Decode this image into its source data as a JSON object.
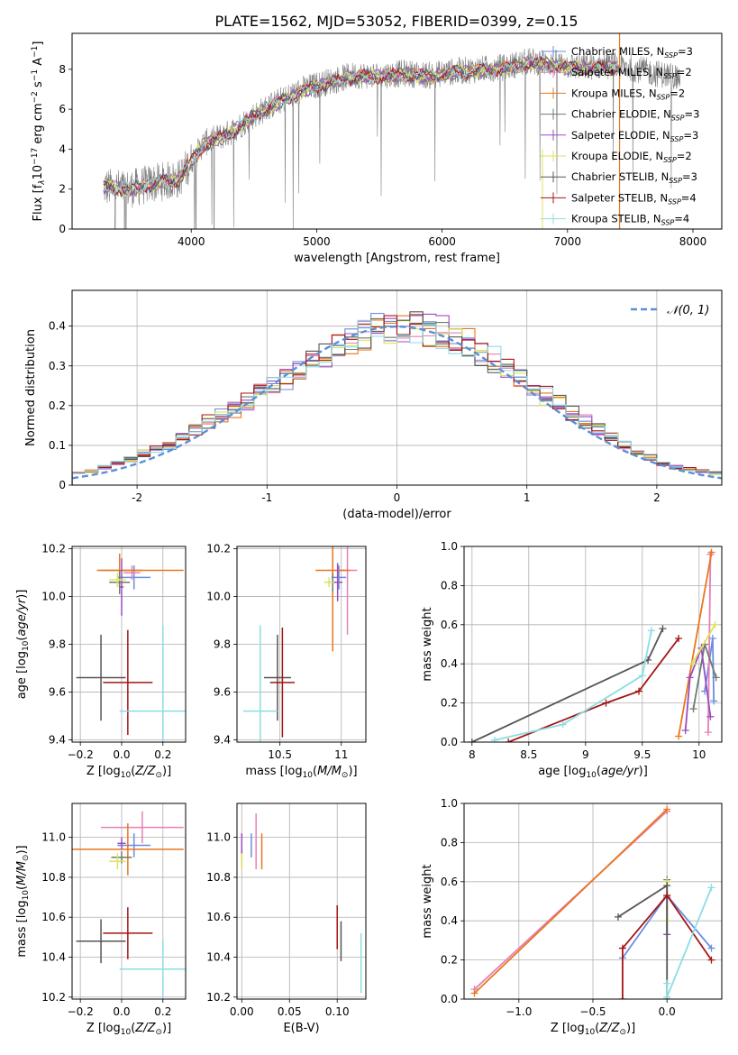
{
  "figure_title": "PLATE=1562, MJD=53052, FIBERID=0399, z=0.15",
  "colors": {
    "Chabrier MILES": "#6a8ee0",
    "Salpeter MILES": "#e77fb9",
    "Kroupa MILES": "#e8771f",
    "Chabrier ELODIE": "#6f7a6f",
    "Salpeter ELODIE": "#9a4cc2",
    "Kroupa ELODIE": "#dbe35a",
    "Chabrier STELIB": "#555555",
    "Salpeter STELIB": "#a51515",
    "Kroupa STELIB": "#8cdde3",
    "observed": "#808080",
    "normal": "#5b8fd6"
  },
  "chart_data": [
    {
      "id": "spectrum",
      "type": "line",
      "title": "PLATE=1562, MJD=53052, FIBERID=0399, z=0.15",
      "xlabel": "wavelength [Angstrom, rest frame]",
      "ylabel": "Flux [f_λ 10^-17 erg cm^-2 s^-1 A^-1]",
      "xlim": [
        3050,
        8230
      ],
      "ylim": [
        0,
        9.8
      ],
      "xticks": [
        4000,
        5000,
        6000,
        7000,
        8000
      ],
      "yticks": [
        0,
        2,
        4,
        6,
        8
      ],
      "grid": false,
      "legend_position": "upper-right",
      "observed_continuum": {
        "x": [
          3300,
          3500,
          3700,
          3900,
          4100,
          4300,
          4500,
          4700,
          4900,
          5100,
          5300,
          5500,
          5700,
          5900,
          6100,
          6300,
          6500,
          6700,
          6900,
          7100,
          7300,
          7500,
          7700,
          7900
        ],
        "y": [
          2.1,
          2.0,
          2.3,
          2.5,
          4.3,
          4.8,
          5.7,
          6.4,
          7.0,
          7.4,
          7.7,
          7.7,
          7.8,
          7.7,
          7.9,
          8.0,
          8.1,
          8.4,
          8.3,
          8.1,
          8.2,
          8.1,
          7.8,
          7.6
        ]
      },
      "legend": [
        "Chabrier MILES, N_SSP=3",
        "Salpeter MILES, N_SSP=2",
        "Kroupa MILES, N_SSP=2",
        "Chabrier ELODIE, N_SSP=3",
        "Salpeter ELODIE, N_SSP=3",
        "Kroupa ELODIE, N_SSP=2",
        "Chabrier STELIB, N_SSP=3",
        "Salpeter STELIB, N_SSP=4",
        "Kroupa STELIB, N_SSP=4"
      ]
    },
    {
      "id": "residuals",
      "type": "histogram",
      "xlabel": "(data-model)/error",
      "ylabel": "Normed distribution",
      "xlim": [
        -2.5,
        2.5
      ],
      "ylim": [
        0,
        0.49
      ],
      "xticks": [
        -2,
        -1,
        0,
        1,
        2
      ],
      "yticks": [
        0.0,
        0.1,
        0.2,
        0.3,
        0.4
      ],
      "grid": true,
      "legend_position": "upper-right",
      "legend": [
        "𝒩(0, 1)"
      ],
      "bin_edges_range": [
        -2.5,
        2.5
      ],
      "bin_count": 50,
      "reference_heights": [
        0.03,
        0.035,
        0.045,
        0.055,
        0.065,
        0.08,
        0.09,
        0.1,
        0.12,
        0.14,
        0.16,
        0.175,
        0.19,
        0.21,
        0.23,
        0.255,
        0.27,
        0.29,
        0.31,
        0.33,
        0.35,
        0.37,
        0.38,
        0.39,
        0.395,
        0.4,
        0.4,
        0.39,
        0.385,
        0.37,
        0.355,
        0.335,
        0.315,
        0.295,
        0.27,
        0.25,
        0.225,
        0.205,
        0.18,
        0.16,
        0.14,
        0.12,
        0.1,
        0.085,
        0.07,
        0.055,
        0.045,
        0.04,
        0.035,
        0.03
      ]
    },
    {
      "id": "age-vs-Z",
      "type": "errorbar",
      "xlabel": "Z [log10(Z/Z⊙)]",
      "ylabel": "age [log10(age/yr)]",
      "xlim": [
        -0.24,
        0.31
      ],
      "ylim": [
        9.39,
        10.21
      ],
      "xticks": [
        -0.2,
        0.0,
        0.2
      ],
      "xtick_labels": [
        "−0.2",
        "0.0",
        "0.2"
      ],
      "yticks": [
        9.4,
        9.6,
        9.8,
        10.0,
        10.2
      ],
      "grid": true,
      "points": [
        {
          "series": "Chabrier MILES",
          "x": 0.06,
          "y": 10.08,
          "xerr": 0.08,
          "yerr": 0.05
        },
        {
          "series": "Salpeter MILES",
          "x": 0.05,
          "y": 10.1,
          "xerr": 0.04,
          "yerr": 0.03
        },
        {
          "series": "Kroupa MILES",
          "x": -0.01,
          "y": 10.11,
          "xerr": 0.11,
          "yerr": 0.07
        },
        {
          "series": "Kroupa MILES",
          "x": 0.1,
          "y": 10.11,
          "xerr": 0.2,
          "yerr": 0.0
        },
        {
          "series": "Chabrier ELODIE",
          "x": -0.01,
          "y": 10.06,
          "xerr": 0.05,
          "yerr": 0.05
        },
        {
          "series": "Salpeter ELODIE",
          "x": 0.0,
          "y": 10.04,
          "xerr": 0.01,
          "yerr": 0.12
        },
        {
          "series": "Kroupa ELODIE",
          "x": -0.02,
          "y": 10.07,
          "xerr": 0.04,
          "yerr": 0.03
        },
        {
          "series": "Chabrier STELIB",
          "x": -0.1,
          "y": 9.66,
          "xerr": 0.12,
          "yerr": 0.18
        },
        {
          "series": "Salpeter STELIB",
          "x": 0.03,
          "y": 9.64,
          "xerr": 0.12,
          "yerr": 0.22
        },
        {
          "series": "Kroupa STELIB",
          "x": 0.2,
          "y": 9.52,
          "xerr": 0.21,
          "yerr": 0.36
        }
      ]
    },
    {
      "id": "age-vs-mass",
      "type": "errorbar",
      "xlabel": "mass [log10(M/M⊙)]",
      "xlim": [
        10.15,
        11.2
      ],
      "ylim": [
        9.39,
        10.21
      ],
      "xticks": [
        10.5,
        11.0
      ],
      "yticks": [
        9.4,
        9.6,
        9.8,
        10.0,
        10.2
      ],
      "grid": true,
      "points": [
        {
          "series": "Chabrier MILES",
          "x": 10.98,
          "y": 10.08,
          "xerr": 0.06,
          "yerr": 0.05
        },
        {
          "series": "Salpeter MILES",
          "x": 11.05,
          "y": 10.11,
          "xerr": 0.08,
          "yerr": 0.27
        },
        {
          "series": "Kroupa MILES",
          "x": 10.93,
          "y": 10.11,
          "xerr": 0.14,
          "yerr": 0.34
        },
        {
          "series": "Chabrier ELODIE",
          "x": 10.93,
          "y": 10.06,
          "xerr": 0.03,
          "yerr": 0.04
        },
        {
          "series": "Salpeter ELODIE",
          "x": 10.97,
          "y": 10.06,
          "xerr": 0.04,
          "yerr": 0.08
        },
        {
          "series": "Kroupa ELODIE",
          "x": 10.9,
          "y": 10.06,
          "xerr": 0.04,
          "yerr": 0.02
        },
        {
          "series": "Chabrier STELIB",
          "x": 10.48,
          "y": 9.66,
          "xerr": 0.11,
          "yerr": 0.18
        },
        {
          "series": "Salpeter STELIB",
          "x": 10.52,
          "y": 9.64,
          "xerr": 0.1,
          "yerr": 0.23
        },
        {
          "series": "Kroupa STELIB",
          "x": 10.34,
          "y": 9.52,
          "xerr": 0.14,
          "yerr": 0.36
        }
      ]
    },
    {
      "id": "weight-vs-age",
      "type": "line",
      "xlabel": "age [log10(age/yr)]",
      "ylabel": "mass weight",
      "xlim": [
        7.93,
        10.2
      ],
      "ylim": [
        0,
        1.0
      ],
      "xticks": [
        8.0,
        8.5,
        9.0,
        9.5,
        10.0
      ],
      "yticks": [
        0.0,
        0.2,
        0.4,
        0.6,
        0.8,
        1.0
      ],
      "grid": true,
      "series": [
        {
          "name": "Chabrier MILES",
          "x": [
            10.05,
            10.12,
            10.13
          ],
          "y": [
            0.26,
            0.53,
            0.21
          ]
        },
        {
          "name": "Salpeter MILES",
          "x": [
            10.08,
            10.1
          ],
          "y": [
            0.05,
            0.96
          ]
        },
        {
          "name": "Kroupa MILES",
          "x": [
            9.82,
            10.11
          ],
          "y": [
            0.03,
            0.97
          ]
        },
        {
          "name": "Chabrier ELODIE",
          "x": [
            9.95,
            10.05,
            10.15
          ],
          "y": [
            0.17,
            0.5,
            0.33
          ]
        },
        {
          "name": "Salpeter ELODIE",
          "x": [
            9.88,
            9.92,
            10.02,
            10.1
          ],
          "y": [
            0.06,
            0.33,
            0.48,
            0.13
          ]
        },
        {
          "name": "Kroupa ELODIE",
          "x": [
            9.94,
            10.14
          ],
          "y": [
            0.4,
            0.6
          ]
        },
        {
          "name": "Chabrier STELIB",
          "x": [
            8.0,
            9.55,
            9.68
          ],
          "y": [
            0.0,
            0.42,
            0.58
          ]
        },
        {
          "name": "Salpeter STELIB",
          "x": [
            8.32,
            9.18,
            9.47,
            9.82
          ],
          "y": [
            0.0,
            0.2,
            0.26,
            0.53
          ]
        },
        {
          "name": "Kroupa STELIB",
          "x": [
            8.2,
            8.8,
            9.5,
            9.58
          ],
          "y": [
            0.01,
            0.09,
            0.34,
            0.57
          ]
        }
      ]
    },
    {
      "id": "mass-vs-Z",
      "type": "errorbar",
      "xlabel": "Z [log10(Z/Z⊙)]",
      "ylabel": "mass [log10(M/M⊙)]",
      "xlim": [
        -0.24,
        0.31
      ],
      "ylim": [
        10.19,
        11.17
      ],
      "xticks": [
        -0.2,
        0.0,
        0.2
      ],
      "xtick_labels": [
        "−0.2",
        "0.0",
        "0.2"
      ],
      "yticks": [
        10.2,
        10.4,
        10.6,
        10.8,
        11.0
      ],
      "grid": true,
      "points": [
        {
          "series": "Chabrier MILES",
          "x": 0.06,
          "y": 10.96,
          "xerr": 0.08,
          "yerr": 0.06
        },
        {
          "series": "Salpeter MILES",
          "x": 0.1,
          "y": 11.05,
          "xerr": 0.2,
          "yerr": 0.08
        },
        {
          "series": "Kroupa MILES",
          "x": 0.03,
          "y": 10.94,
          "xerr": 0.27,
          "yerr": 0.13
        },
        {
          "series": "Chabrier ELODIE",
          "x": 0.0,
          "y": 10.9,
          "xerr": 0.05,
          "yerr": 0.03
        },
        {
          "series": "Salpeter ELODIE",
          "x": 0.0,
          "y": 10.97,
          "xerr": 0.02,
          "yerr": 0.03
        },
        {
          "series": "Kroupa ELODIE",
          "x": -0.02,
          "y": 10.88,
          "xerr": 0.04,
          "yerr": 0.04
        },
        {
          "series": "Chabrier STELIB",
          "x": -0.1,
          "y": 10.48,
          "xerr": 0.12,
          "yerr": 0.11
        },
        {
          "series": "Salpeter STELIB",
          "x": 0.03,
          "y": 10.52,
          "xerr": 0.12,
          "yerr": 0.13
        },
        {
          "series": "Kroupa STELIB",
          "x": 0.2,
          "y": 10.34,
          "xerr": 0.21,
          "yerr": 0.15
        }
      ]
    },
    {
      "id": "mass-vs-ebv",
      "type": "errorbar",
      "xlabel": "E(B-V)",
      "xlim": [
        -0.005,
        0.13
      ],
      "ylim": [
        10.19,
        11.17
      ],
      "xticks": [
        0.0,
        0.05,
        0.1
      ],
      "xtick_labels": [
        "0.00",
        "0.05",
        "0.10"
      ],
      "yticks": [
        10.2,
        10.4,
        10.6,
        10.8,
        11.0
      ],
      "grid": true,
      "points": [
        {
          "series": "Chabrier MILES",
          "x": 0.01,
          "y": 10.96,
          "xerr": 0.0,
          "yerr": 0.06
        },
        {
          "series": "Salpeter MILES",
          "x": 0.015,
          "y": 10.98,
          "xerr": 0.0,
          "yerr": 0.14
        },
        {
          "series": "Kroupa MILES",
          "x": 0.021,
          "y": 10.93,
          "xerr": 0.0,
          "yerr": 0.09
        },
        {
          "series": "Chabrier ELODIE",
          "x": 0.0,
          "y": 10.9,
          "xerr": 0.0,
          "yerr": 0.04
        },
        {
          "series": "Salpeter ELODIE",
          "x": 0.0,
          "y": 10.96,
          "xerr": 0.0,
          "yerr": 0.06
        },
        {
          "series": "Kroupa ELODIE",
          "x": 0.0,
          "y": 10.88,
          "xerr": 0.0,
          "yerr": 0.04
        },
        {
          "series": "Chabrier STELIB",
          "x": 0.104,
          "y": 10.48,
          "xerr": 0.0,
          "yerr": 0.1
        },
        {
          "series": "Salpeter STELIB",
          "x": 0.1,
          "y": 10.55,
          "xerr": 0.0,
          "yerr": 0.11
        },
        {
          "series": "Kroupa STELIB",
          "x": 0.125,
          "y": 10.37,
          "xerr": 0.0,
          "yerr": 0.15
        }
      ]
    },
    {
      "id": "weight-vs-Z",
      "type": "line",
      "xlabel": "Z [log10(Z/Z⊙)]",
      "ylabel": "mass weight",
      "xlim": [
        -1.37,
        0.37
      ],
      "ylim": [
        0,
        1.0
      ],
      "xticks": [
        -1.0,
        -0.5,
        0.0
      ],
      "xtick_labels": [
        "−1.0",
        "−0.5",
        "0.0"
      ],
      "yticks": [
        0.0,
        0.2,
        0.4,
        0.6,
        0.8,
        1.0
      ],
      "grid": true,
      "series": [
        {
          "name": "Chabrier MILES",
          "x": [
            -0.3,
            0.0,
            0.3
          ],
          "y": [
            0.21,
            0.53,
            0.26
          ]
        },
        {
          "name": "Salpeter MILES",
          "x": [
            -1.3,
            0.0
          ],
          "y": [
            0.05,
            0.96
          ]
        },
        {
          "name": "Kroupa MILES",
          "x": [
            -1.3,
            0.0
          ],
          "y": [
            0.03,
            0.97
          ]
        },
        {
          "name": "Chabrier ELODIE",
          "x": [
            0.0,
            0.0
          ],
          "y": [
            0.33,
            0.61
          ]
        },
        {
          "name": "Salpeter ELODIE",
          "x": [
            0.0,
            0.0
          ],
          "y": [
            0.33,
            0.52
          ]
        },
        {
          "name": "Kroupa ELODIE",
          "x": [
            0.0,
            0.0
          ],
          "y": [
            0.4,
            0.6
          ]
        },
        {
          "name": "Chabrier STELIB",
          "x": [
            -0.33,
            0.0,
            0.0
          ],
          "y": [
            0.42,
            0.58,
            0.0
          ]
        },
        {
          "name": "Salpeter STELIB",
          "x": [
            -0.3,
            -0.3,
            0.0,
            0.3
          ],
          "y": [
            0.0,
            0.26,
            0.53,
            0.2
          ]
        },
        {
          "name": "Kroupa STELIB",
          "x": [
            0.0,
            0.0,
            0.3
          ],
          "y": [
            0.08,
            0.01,
            0.57
          ]
        }
      ]
    }
  ]
}
